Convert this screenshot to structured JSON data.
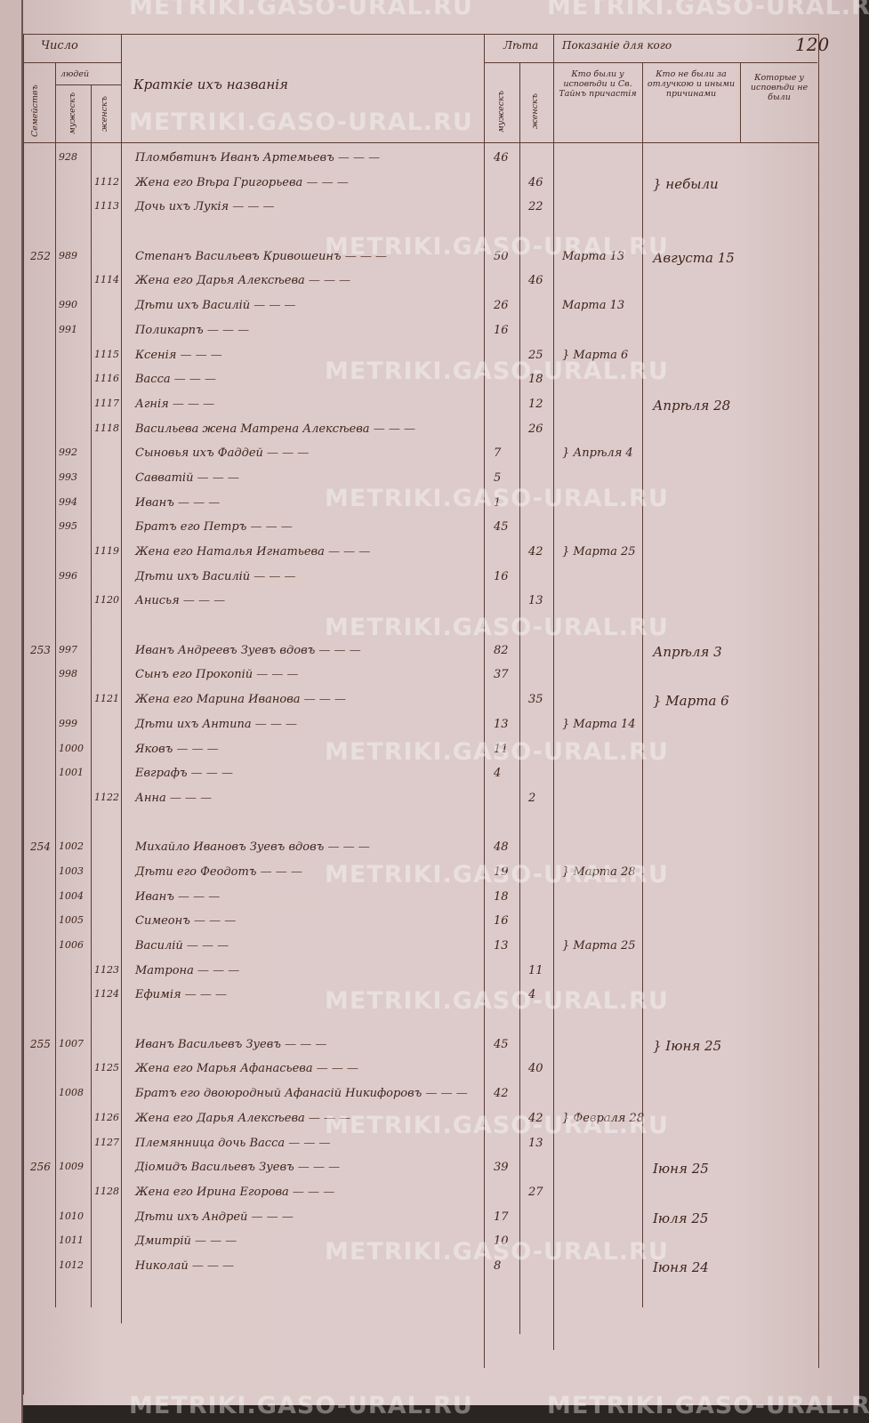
{
  "watermark": "METRIKI.GASO-URAL.RU",
  "page_number": "120",
  "header": {
    "count": "Число",
    "families": "Семействъ",
    "people": "людей",
    "male": "мужескъ",
    "female": "женскъ",
    "names": "Краткіе ихъ названія",
    "years": "Лѣта",
    "years_male": "мужескъ",
    "years_female": "женскъ",
    "shown": "Показаніе для кого",
    "confessed": "Кто были у исповѣди и Св. Тайнъ причастія",
    "absent": "Кто не были за отлучкою и иными причинами",
    "not_confessed": "Которые у исповѣди не были"
  },
  "rows": [
    {
      "m": "928",
      "text": "Пломбвтинъ Иванъ Артемьевъ",
      "am": "46"
    },
    {
      "f": "1112",
      "text": "Жена его Вѣра Григорьева",
      "af": "46",
      "c2": "} небыли"
    },
    {
      "f": "1113",
      "text": "Дочь ихъ Лукія",
      "af": "22"
    },
    {},
    {
      "fam": "252",
      "m": "989",
      "text": "Степанъ Васильевъ Кривошеинъ",
      "am": "50",
      "c1": "Марта 13",
      "c2": "Августа 15"
    },
    {
      "f": "1114",
      "text": "Жена его Дарья Алексѣева",
      "af": "46"
    },
    {
      "m": "990",
      "text": "Дѣти ихъ Василій",
      "am": "26",
      "c1": "Марта 13"
    },
    {
      "m": "991",
      "text": "Поликарпъ",
      "am": "16"
    },
    {
      "f": "1115",
      "text": "Ксенія",
      "af": "25",
      "c1": "} Марта 6"
    },
    {
      "f": "1116",
      "text": "Васса",
      "af": "18"
    },
    {
      "f": "1117",
      "text": "Агнія",
      "af": "12",
      "c2": "Апрѣля 28"
    },
    {
      "f": "1118",
      "text": "Васильева жена Матрена Алексѣева",
      "af": "26"
    },
    {
      "m": "992",
      "text": "Сыновья ихъ Фаддей",
      "am": "7",
      "c1": "} Апрѣля 4"
    },
    {
      "m": "993",
      "text": "Савватій",
      "am": "5"
    },
    {
      "m": "994",
      "text": "Иванъ",
      "am": "1"
    },
    {
      "m": "995",
      "text": "Братъ его Петръ",
      "am": "45"
    },
    {
      "f": "1119",
      "text": "Жена его Наталья Игнатьева",
      "af": "42",
      "c1": "} Марта 25"
    },
    {
      "m": "996",
      "text": "Дѣти ихъ Василій",
      "am": "16"
    },
    {
      "f": "1120",
      "text": "Анисья",
      "af": "13"
    },
    {},
    {
      "fam": "253",
      "m": "997",
      "text": "Иванъ Андреевъ Зуевъ вдовъ",
      "am": "82",
      "c2": "Апрѣля 3"
    },
    {
      "m": "998",
      "text": "Сынъ его Прокопій",
      "am": "37"
    },
    {
      "f": "1121",
      "text": "Жена его Марина Иванова",
      "af": "35",
      "c2": "} Марта 6"
    },
    {
      "m": "999",
      "text": "Дѣти ихъ Антипа",
      "am": "13",
      "c1": "} Марта 14"
    },
    {
      "m": "1000",
      "text": "Яковъ",
      "am": "11"
    },
    {
      "m": "1001",
      "text": "Евграфъ",
      "am": "4"
    },
    {
      "f": "1122",
      "text": "Анна",
      "af": "2"
    },
    {},
    {
      "fam": "254",
      "m": "1002",
      "text": "Михайло Ивановъ Зуевъ вдовъ",
      "am": "48"
    },
    {
      "m": "1003",
      "text": "Дѣти его Феодотъ",
      "am": "19",
      "c1": "} Марта 28"
    },
    {
      "m": "1004",
      "text": "Иванъ",
      "am": "18"
    },
    {
      "m": "1005",
      "text": "Симеонъ",
      "am": "16"
    },
    {
      "m": "1006",
      "text": "Василій",
      "am": "13",
      "c1": "} Марта 25"
    },
    {
      "f": "1123",
      "text": "Матрона",
      "af": "11"
    },
    {
      "f": "1124",
      "text": "Ефимія",
      "af": "4"
    },
    {},
    {
      "fam": "255",
      "m": "1007",
      "text": "Иванъ Васильевъ Зуевъ",
      "am": "45",
      "c2": "} Іюня 25"
    },
    {
      "f": "1125",
      "text": "Жена его Марья Афанасьева",
      "af": "40"
    },
    {
      "m": "1008",
      "text": "Братъ его двоюродный Афанасій Никифоровъ",
      "am": "42"
    },
    {
      "f": "1126",
      "text": "Жена его Дарья Алексѣева",
      "af": "42",
      "c1": "} Февраля 28"
    },
    {
      "f": "1127",
      "text": "Племянница дочь Васса",
      "af": "13"
    },
    {
      "fam": "256",
      "m": "1009",
      "text": "Діомидъ Васильевъ Зуевъ",
      "am": "39",
      "c2": "Іюня 25"
    },
    {
      "f": "1128",
      "text": "Жена его Ирина Егорова",
      "af": "27"
    },
    {
      "m": "1010",
      "text": "Дѣти ихъ Андрей",
      "am": "17",
      "c2": "Іюля 25"
    },
    {
      "m": "1011",
      "text": "Дмитрій",
      "am": "10"
    },
    {
      "m": "1012",
      "text": "Николай",
      "am": "8",
      "c2": "Іюня 24"
    }
  ]
}
